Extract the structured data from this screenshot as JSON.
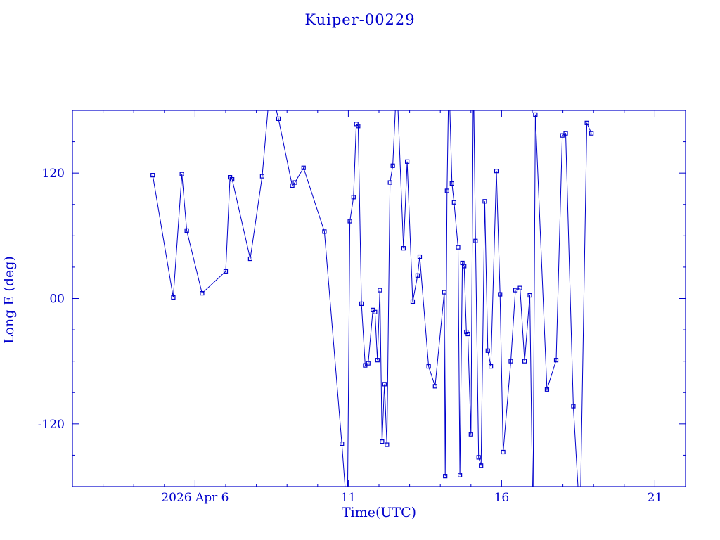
{
  "colors": {
    "accent": "#0000cc",
    "background": "#ffffff"
  },
  "chart_data": {
    "type": "line",
    "title": "Kuiper-00229",
    "xlabel": "Time(UTC)",
    "ylabel": "Long E (deg)",
    "xlim": [
      2,
      22
    ],
    "ylim": [
      -180,
      180
    ],
    "grid": false,
    "legend": "none",
    "x_major_ticks": [
      {
        "value": 6,
        "label": "2026 Apr 6"
      },
      {
        "value": 11,
        "label": "11"
      },
      {
        "value": 16,
        "label": "16"
      },
      {
        "value": 21,
        "label": "21"
      }
    ],
    "x_minor_step": 1,
    "y_major_ticks": [
      {
        "value": 120,
        "label": "120"
      },
      {
        "value": 0,
        "label": "00"
      },
      {
        "value": -120,
        "label": "-120"
      }
    ],
    "y_minor_step": 30,
    "line_color": "#0000cc",
    "marker": "open-square",
    "series": [
      {
        "name": "Long E",
        "points": [
          [
            4.62,
            118
          ],
          [
            5.29,
            1
          ],
          [
            5.57,
            119
          ],
          [
            5.73,
            65
          ],
          [
            6.23,
            5
          ],
          [
            7.0,
            26
          ],
          [
            7.14,
            116
          ],
          [
            7.21,
            114
          ],
          [
            7.8,
            38
          ],
          [
            8.19,
            117
          ],
          [
            8.45,
            205
          ],
          [
            8.72,
            172
          ],
          [
            9.17,
            108
          ],
          [
            9.26,
            111
          ],
          [
            9.54,
            125
          ],
          [
            10.22,
            64
          ],
          [
            10.79,
            -139
          ],
          [
            10.97,
            -210
          ],
          [
            11.05,
            74
          ],
          [
            11.17,
            97
          ],
          [
            11.26,
            167
          ],
          [
            11.32,
            165
          ],
          [
            11.43,
            -5
          ],
          [
            11.55,
            -64
          ],
          [
            11.65,
            -62
          ],
          [
            11.8,
            -11
          ],
          [
            11.87,
            -13
          ],
          [
            11.95,
            -59
          ],
          [
            12.03,
            8
          ],
          [
            12.1,
            -137
          ],
          [
            12.18,
            -82
          ],
          [
            12.26,
            -140
          ],
          [
            12.36,
            111
          ],
          [
            12.45,
            127
          ],
          [
            12.58,
            210
          ],
          [
            12.8,
            48
          ],
          [
            12.92,
            131
          ],
          [
            13.1,
            -3
          ],
          [
            13.26,
            22
          ],
          [
            13.33,
            40
          ],
          [
            13.62,
            -65
          ],
          [
            13.83,
            -84
          ],
          [
            14.13,
            6
          ],
          [
            14.16,
            -170
          ],
          [
            14.22,
            103
          ],
          [
            14.28,
            215
          ],
          [
            14.38,
            110
          ],
          [
            14.45,
            92
          ],
          [
            14.58,
            49
          ],
          [
            14.64,
            -169
          ],
          [
            14.72,
            34
          ],
          [
            14.78,
            31
          ],
          [
            14.85,
            -32
          ],
          [
            14.9,
            -34
          ],
          [
            15.0,
            -130
          ],
          [
            15.08,
            215
          ],
          [
            15.15,
            55
          ],
          [
            15.25,
            -152
          ],
          [
            15.33,
            -160
          ],
          [
            15.45,
            93
          ],
          [
            15.55,
            -50
          ],
          [
            15.65,
            -65
          ],
          [
            15.83,
            122
          ],
          [
            15.95,
            4
          ],
          [
            16.05,
            -147
          ],
          [
            16.3,
            -60
          ],
          [
            16.45,
            8
          ],
          [
            16.6,
            10
          ],
          [
            16.75,
            -60
          ],
          [
            16.92,
            3
          ],
          [
            17.02,
            -215
          ],
          [
            17.1,
            176
          ],
          [
            17.48,
            -87
          ],
          [
            17.78,
            -59
          ],
          [
            17.98,
            156
          ],
          [
            18.09,
            158
          ],
          [
            18.34,
            -103
          ],
          [
            18.56,
            -215
          ],
          [
            18.78,
            168
          ],
          [
            18.93,
            158
          ]
        ]
      }
    ]
  }
}
